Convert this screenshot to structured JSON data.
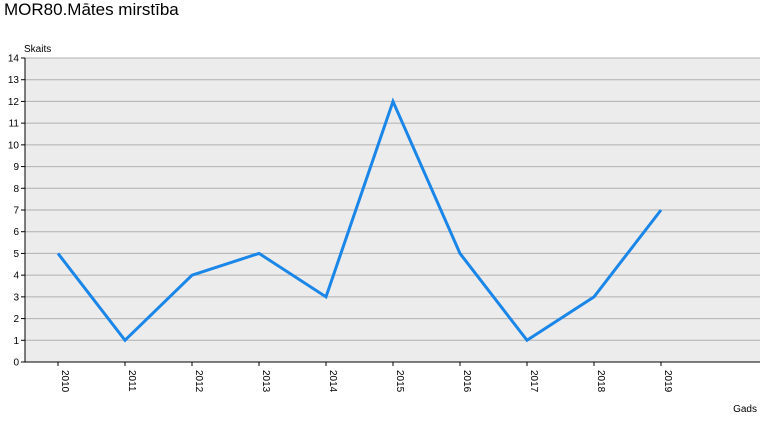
{
  "title": "MOR80.Mātes mirstība",
  "chart_data": {
    "type": "line",
    "title": "MOR80.Mātes mirstība",
    "ylabel": "Skaits",
    "xlabel": "Gads",
    "x": [
      "2010",
      "2011",
      "2012",
      "2013",
      "2014",
      "2015",
      "2016",
      "2017",
      "2018",
      "2019"
    ],
    "series": [
      {
        "values": [
          5,
          1,
          4,
          5,
          3,
          12,
          5,
          1,
          3,
          7
        ],
        "color": "#1a86e8"
      }
    ],
    "ylim": [
      0,
      14
    ],
    "yticks": [
      "0",
      "1",
      "2",
      "3",
      "4",
      "5",
      "6",
      "7",
      "8",
      "9",
      "10",
      "11",
      "12",
      "13",
      "14"
    ],
    "grid": true,
    "plot_background": "#ececec",
    "grid_color": "#b0b0b0"
  }
}
